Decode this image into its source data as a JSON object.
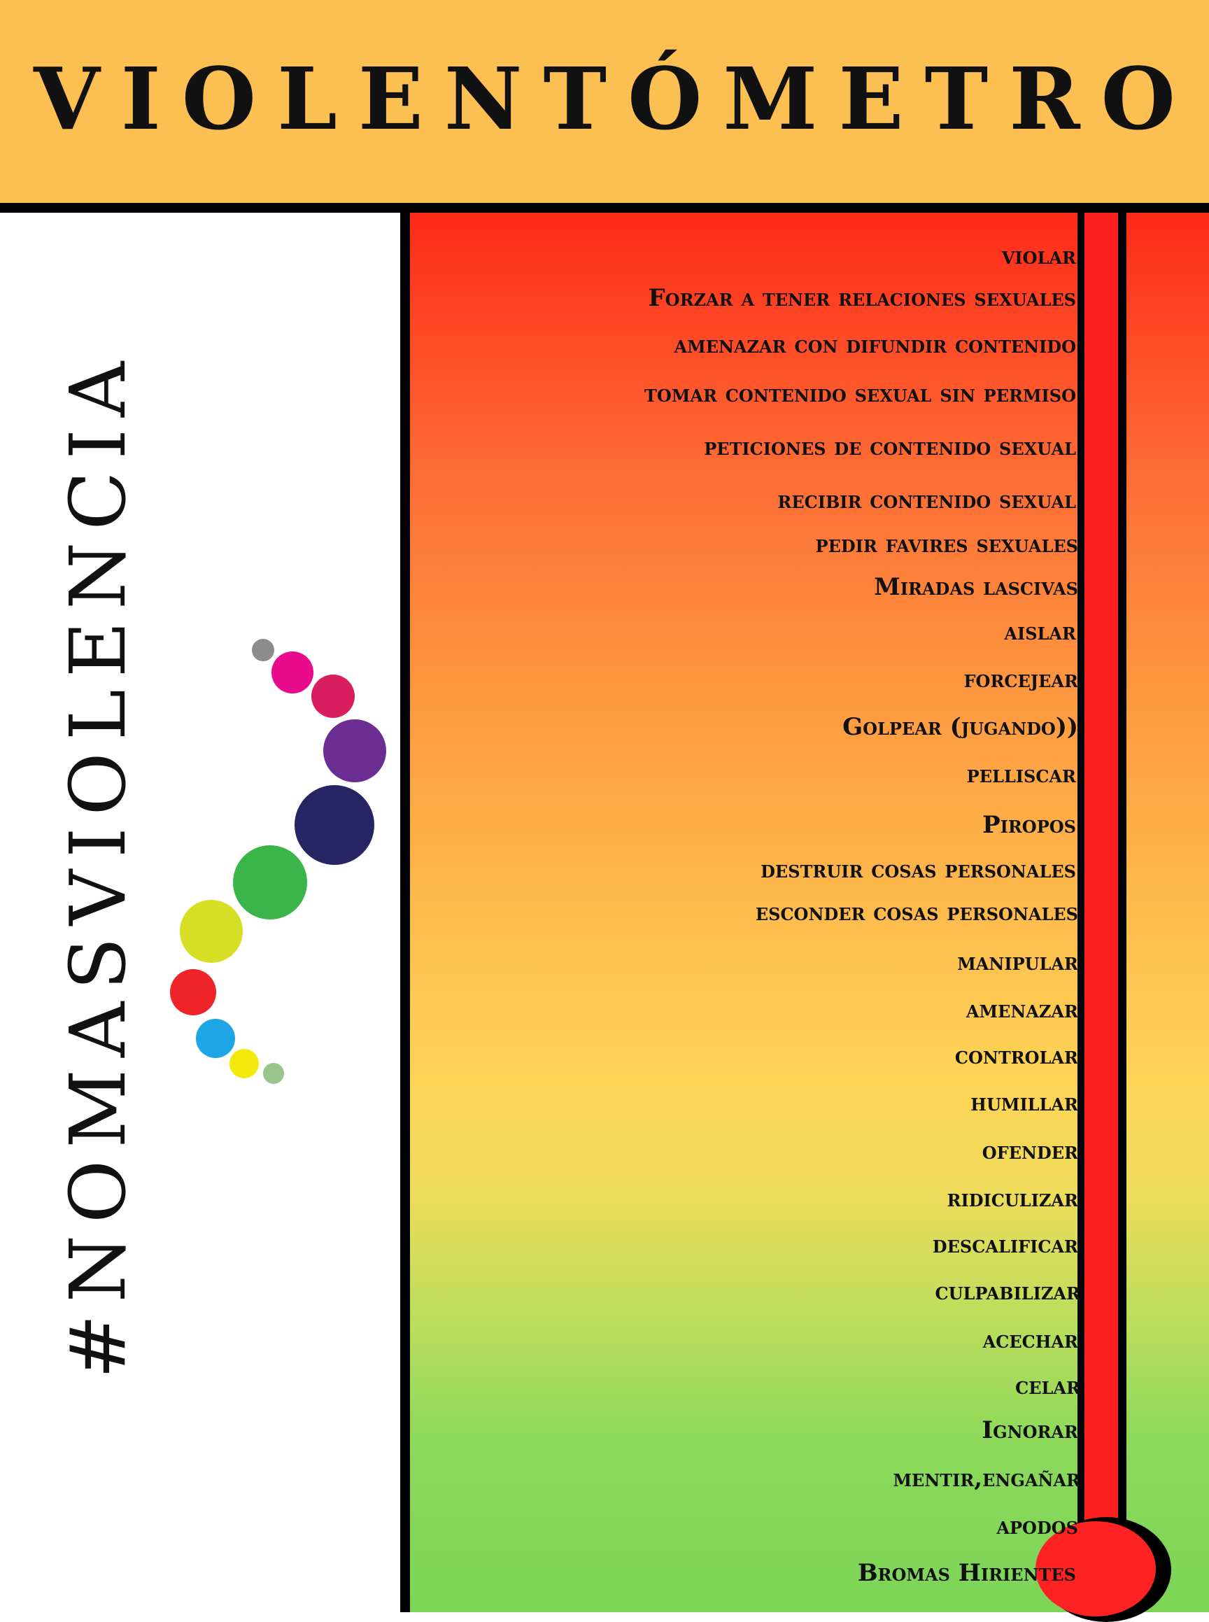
{
  "header": {
    "title": "VIOLENTÓMETRO"
  },
  "sidebar": {
    "hashtag": "#NOMASVIOLENCIA"
  },
  "logo": {
    "dot_colors": [
      "#8c8c8c",
      "#ea0a8c",
      "#d91e60",
      "#6a2d92",
      "#262462",
      "#39b54a",
      "#d6df24",
      "#ee2428",
      "#1ea5e6",
      "#f2ea0c",
      "#9ac48e"
    ]
  },
  "meter": {
    "colors": {
      "top": "#ff2a18",
      "middle": "#fed455",
      "bottom": "#7cd557",
      "tube": "#ff2020"
    },
    "items": [
      "violar",
      "Forzar a tener relaciones sexuales",
      "amenazar con difundir contenido",
      "tomar contenido sexual sin permiso",
      "peticiones de contenido sexual",
      "recibir contenido sexual",
      "pedir favires sexuales",
      "Miradas lascivas",
      "aislar",
      "forcejear",
      "Golpear (jugando))",
      "pelliscar",
      "Piropos",
      "destruir cosas personales",
      "esconder cosas personales",
      "manipular",
      "amenazar",
      "controlar",
      "humillar",
      "ofender",
      "ridiculizar",
      "descalificar",
      "culpabilizar",
      "acechar",
      "celar",
      "Ignorar",
      "mentir,engañar",
      "apodos",
      "Bromas Hirientes"
    ]
  }
}
